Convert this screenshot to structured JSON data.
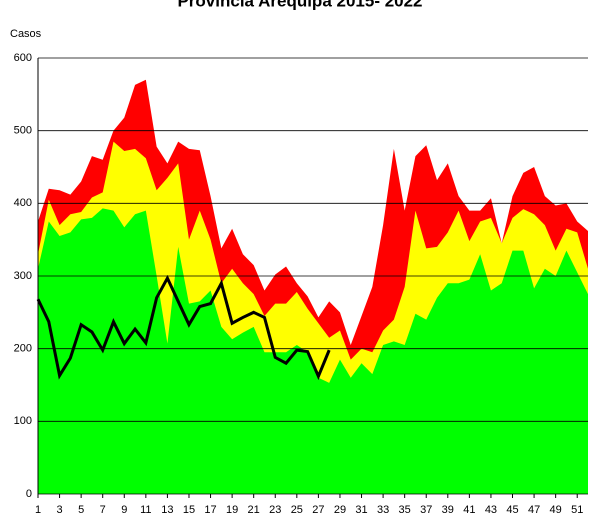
{
  "chart_data": {
    "type": "area",
    "title": "Provincia Arequipa  2015- 2022",
    "y_label": "Casos",
    "x": [
      1,
      2,
      3,
      4,
      5,
      6,
      7,
      8,
      9,
      10,
      11,
      12,
      13,
      14,
      15,
      16,
      17,
      18,
      19,
      20,
      21,
      22,
      23,
      24,
      25,
      26,
      27,
      28,
      29,
      30,
      31,
      32,
      33,
      34,
      35,
      36,
      37,
      38,
      39,
      40,
      41,
      42,
      43,
      44,
      45,
      46,
      47,
      48,
      49,
      50,
      51,
      52
    ],
    "xlim": [
      1,
      52
    ],
    "xticks": [
      1,
      3,
      5,
      7,
      9,
      11,
      13,
      15,
      17,
      19,
      21,
      23,
      25,
      27,
      29,
      31,
      33,
      35,
      37,
      39,
      41,
      43,
      45,
      47,
      49,
      51
    ],
    "ylim": [
      0,
      600
    ],
    "yticks": [
      0,
      100,
      200,
      300,
      400,
      500,
      600
    ],
    "grid": true,
    "series": [
      {
        "color": "#ff0000",
        "values": [
          375,
          420,
          418,
          412,
          430,
          465,
          460,
          500,
          518,
          563,
          570,
          478,
          455,
          485,
          475,
          473,
          410,
          338,
          365,
          330,
          315,
          280,
          302,
          313,
          290,
          272,
          243,
          265,
          250,
          205,
          245,
          285,
          370,
          475,
          390,
          465,
          480,
          432,
          455,
          410,
          390,
          390,
          407,
          345,
          410,
          442,
          450,
          410,
          397,
          400,
          375,
          362
        ]
      },
      {
        "color": "#ffff00",
        "values": [
          330,
          405,
          370,
          385,
          388,
          408,
          415,
          485,
          472,
          475,
          462,
          418,
          435,
          455,
          350,
          390,
          350,
          290,
          310,
          290,
          275,
          245,
          262,
          262,
          278,
          255,
          235,
          215,
          225,
          185,
          200,
          195,
          225,
          240,
          285,
          390,
          338,
          340,
          360,
          390,
          348,
          375,
          380,
          345,
          380,
          392,
          385,
          370,
          335,
          365,
          360,
          310
        ]
      },
      {
        "color": "#00ff00",
        "values": [
          310,
          375,
          355,
          360,
          378,
          380,
          393,
          390,
          367,
          385,
          390,
          300,
          207,
          340,
          262,
          265,
          280,
          230,
          213,
          222,
          230,
          195,
          195,
          195,
          205,
          195,
          160,
          153,
          185,
          160,
          180,
          165,
          205,
          210,
          205,
          248,
          240,
          270,
          290,
          290,
          295,
          330,
          280,
          290,
          335,
          335,
          283,
          310,
          300,
          335,
          305,
          275
        ]
      },
      {
        "color": "#000000",
        "type": "line",
        "values": [
          268,
          237,
          163,
          187,
          233,
          223,
          198,
          237,
          207,
          227,
          208,
          270,
          297,
          265,
          233,
          258,
          262,
          290,
          235,
          243,
          250,
          243,
          188,
          180,
          198,
          196,
          162,
          198,
          null,
          null,
          null,
          null,
          null,
          null,
          null,
          null,
          null,
          null,
          null,
          null,
          null,
          null,
          null,
          null,
          null,
          null,
          null,
          null,
          null,
          null,
          null,
          null
        ]
      }
    ]
  }
}
